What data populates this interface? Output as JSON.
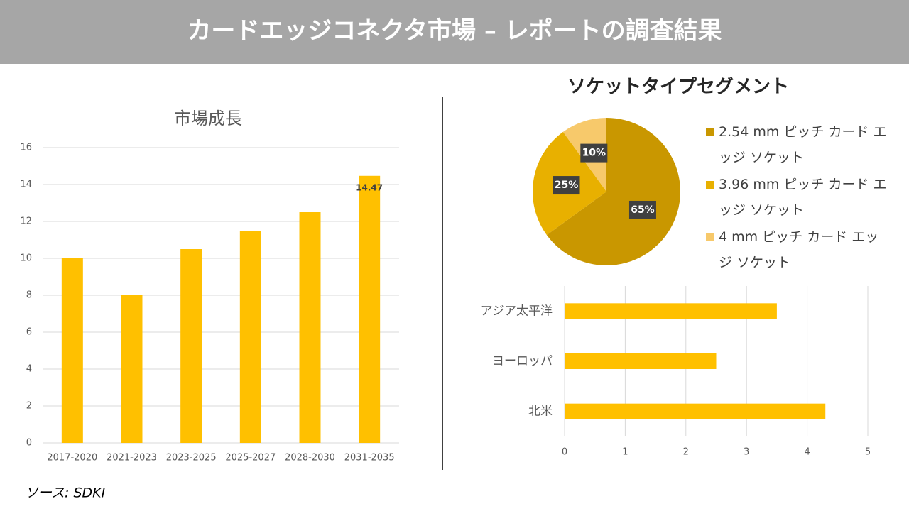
{
  "title": "カードエッジコネクタ市場 – レポートの調査結果",
  "chart_data": [
    {
      "type": "bar",
      "title": "市場成長",
      "categories": [
        "2017-2020",
        "2021-2023",
        "2023-2025",
        "2025-2027",
        "2028-2030",
        "2031-2035"
      ],
      "values": [
        10,
        8,
        10.5,
        11.5,
        12.5,
        14.47
      ],
      "color": "#ffc000",
      "ylim": [
        0,
        16
      ],
      "yticks": [
        0,
        2,
        4,
        6,
        8,
        10,
        12,
        14,
        16
      ],
      "grid": true
    },
    {
      "type": "pie",
      "title": "ソケットタイプセグメント",
      "categories": [
        "2.54 mm ピッチ カード エッジ ソケット",
        "3.96 mm ピッチ カード エッジ ソケット",
        "4 mm ピッチ カード エッジ ソケット"
      ],
      "values": [
        65,
        25,
        10
      ],
      "value_labels": [
        "65%",
        "25%",
        "10%"
      ],
      "colors": [
        "#c99700",
        "#e8b000",
        "#f7c96b"
      ],
      "legend": "right"
    },
    {
      "type": "hbar",
      "categories": [
        "アジア太平洋",
        "ヨーロッパ",
        "北米"
      ],
      "values": [
        3.5,
        2.5,
        4.3
      ],
      "color": "#ffc000",
      "xlim": [
        0,
        5
      ],
      "xticks": [
        0,
        1,
        2,
        3,
        4,
        5
      ],
      "grid": true
    }
  ],
  "source": "ソース: SDKI"
}
